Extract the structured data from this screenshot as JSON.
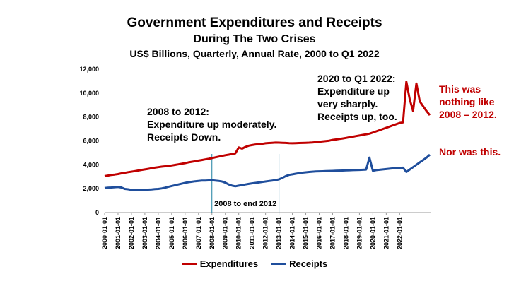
{
  "chart_data": {
    "type": "line",
    "title": "Government Expenditures and Receipts",
    "subtitle": "During The Two Crises",
    "subtitle2": "US$ Billions, Quarterly, Annual Rate, 2000 to Q1 2022",
    "ylim": [
      0,
      12000
    ],
    "yticks": [
      "0",
      "2,000",
      "4,000",
      "6,000",
      "8,000",
      "10,000",
      "12,000"
    ],
    "xtick_labels": [
      "2000-01-01",
      "2001-01-01",
      "2002-01-01",
      "2003-01-01",
      "2004-01-01",
      "2005-01-01",
      "2006-01-01",
      "2007-01-01",
      "2008-01-01",
      "2009-01-01",
      "2010-01-01",
      "2011-01-01",
      "2012-01-01",
      "2013-01-01",
      "2014-01-01",
      "2015-01-01",
      "2016-01-01",
      "2017-01-01",
      "2018-01-01",
      "2019-01-01",
      "2020-01-01",
      "2021-01-01",
      "2022-01-01"
    ],
    "legend_position": "bottom",
    "series": [
      {
        "name": "Expenditures",
        "color": "#c00000",
        "values": [
          3050,
          3100,
          3150,
          3180,
          3220,
          3280,
          3330,
          3380,
          3420,
          3470,
          3520,
          3570,
          3610,
          3660,
          3710,
          3760,
          3800,
          3840,
          3870,
          3900,
          3940,
          3990,
          4040,
          4090,
          4140,
          4200,
          4250,
          4300,
          4350,
          4400,
          4450,
          4500,
          4560,
          4620,
          4680,
          4740,
          4800,
          4850,
          4900,
          4960,
          5450,
          5350,
          5500,
          5600,
          5650,
          5700,
          5720,
          5750,
          5800,
          5820,
          5840,
          5860,
          5850,
          5840,
          5830,
          5810,
          5800,
          5810,
          5820,
          5830,
          5840,
          5850,
          5870,
          5900,
          5930,
          5960,
          5990,
          6020,
          6080,
          6120,
          6160,
          6200,
          6250,
          6300,
          6350,
          6400,
          6450,
          6500,
          6550,
          6600,
          6700,
          6800,
          6900,
          7000,
          7100,
          7200,
          7300,
          7400,
          7500,
          7550,
          10950,
          9500,
          8500,
          10800,
          9300,
          8900,
          8500,
          8150
        ]
      },
      {
        "name": "Receipts",
        "color": "#1f4e9c",
        "values": [
          2050,
          2080,
          2100,
          2120,
          2140,
          2100,
          1980,
          1950,
          1900,
          1880,
          1870,
          1890,
          1900,
          1920,
          1940,
          1960,
          1980,
          2020,
          2080,
          2150,
          2220,
          2290,
          2350,
          2420,
          2480,
          2540,
          2580,
          2620,
          2650,
          2670,
          2680,
          2690,
          2700,
          2680,
          2650,
          2600,
          2500,
          2350,
          2250,
          2200,
          2250,
          2300,
          2350,
          2400,
          2450,
          2480,
          2520,
          2560,
          2600,
          2640,
          2680,
          2720,
          2780,
          2900,
          3050,
          3150,
          3200,
          3250,
          3300,
          3340,
          3370,
          3400,
          3420,
          3440,
          3450,
          3460,
          3470,
          3480,
          3490,
          3500,
          3510,
          3520,
          3530,
          3540,
          3550,
          3560,
          3570,
          3580,
          3600,
          4600,
          3500,
          3550,
          3580,
          3610,
          3640,
          3670,
          3700,
          3720,
          3740,
          3760,
          3400,
          3600,
          3800,
          4000,
          4200,
          4400,
          4600,
          4850
        ]
      }
    ],
    "annotations": {
      "period_label": "2008 to end 2012",
      "crisis1": [
        "2008 to 2012:",
        "Expenditure up moderately.",
        "Receipts Down."
      ],
      "crisis2": [
        "2020 to Q1 2022:",
        "Expenditure up",
        "very sharply.",
        "Receipts up, too."
      ],
      "note1": [
        "This was",
        "nothing like",
        "2008 – 2012."
      ],
      "note2": "Nor was this."
    }
  }
}
